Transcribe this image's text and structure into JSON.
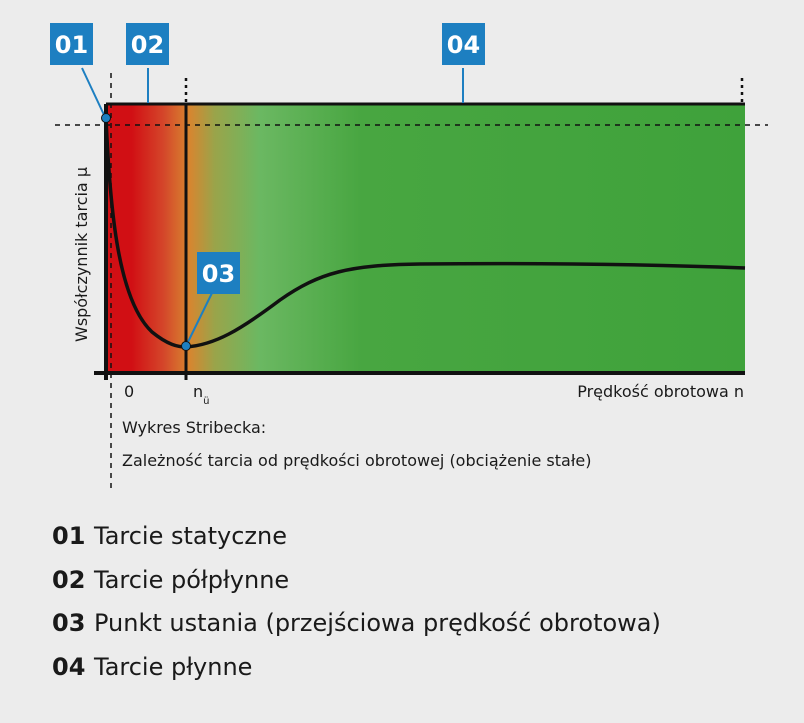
{
  "diagram": {
    "tags": [
      {
        "id": "01",
        "label": "01"
      },
      {
        "id": "02",
        "label": "02"
      },
      {
        "id": "03",
        "label": "03"
      },
      {
        "id": "04",
        "label": "04"
      }
    ],
    "y_axis_label": "Współczynnik tarcia μ",
    "x_axis_label": "Prędkość obrotowa n",
    "x_tick_zero": "0",
    "x_tick_n_main": "n",
    "x_tick_n_sub": "ü",
    "caption_line1": "Wykres Stribecka:",
    "caption_line2": "Zależność tarcia od prędkości obrotowej (obciążenie stałe)",
    "colors": {
      "tag_bg": "#1d7fc1",
      "red": "#d10f14",
      "orange": "#d8852f",
      "green_light": "#6bb862",
      "green": "#3fa23b",
      "curve": "#111111"
    }
  },
  "legend": [
    {
      "num": "01",
      "text": "Tarcie statyczne"
    },
    {
      "num": "02",
      "text": "Tarcie półpłynne"
    },
    {
      "num": "03",
      "text": "Punkt ustania (przejściowa prędkość obrotowa)"
    },
    {
      "num": "04",
      "text": "Tarcie płynne"
    }
  ]
}
